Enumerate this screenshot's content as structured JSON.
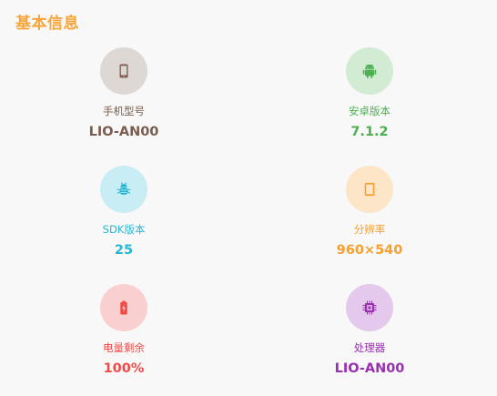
{
  "section": {
    "title": "基本信息"
  },
  "items": [
    {
      "key": "phone_model",
      "label": "手机型号",
      "value": "LIO-AN00",
      "icon": "smartphone-icon",
      "color": "#7b5d4f",
      "bg": "#ded8d5"
    },
    {
      "key": "android_version",
      "label": "安卓版本",
      "value": "7.1.2",
      "icon": "android-icon",
      "color": "#4caf50",
      "bg": "#d2ebd3"
    },
    {
      "key": "sdk_version",
      "label": "SDK版本",
      "value": "25",
      "icon": "bug-icon",
      "color": "#25b6d2",
      "bg": "#c8edf5"
    },
    {
      "key": "resolution",
      "label": "分辨率",
      "value": "960×540",
      "icon": "tablet-icon",
      "color": "#f7a02f",
      "bg": "#fde5c7"
    },
    {
      "key": "battery",
      "label": "电量剩余",
      "value": "100%",
      "icon": "battery-charging-icon",
      "color": "#ef4b46",
      "bg": "#f9d0cf"
    },
    {
      "key": "processor",
      "label": "处理器",
      "value": "LIO-AN00",
      "icon": "chip-icon",
      "color": "#9c2eb3",
      "bg": "#e5c9ec"
    }
  ]
}
